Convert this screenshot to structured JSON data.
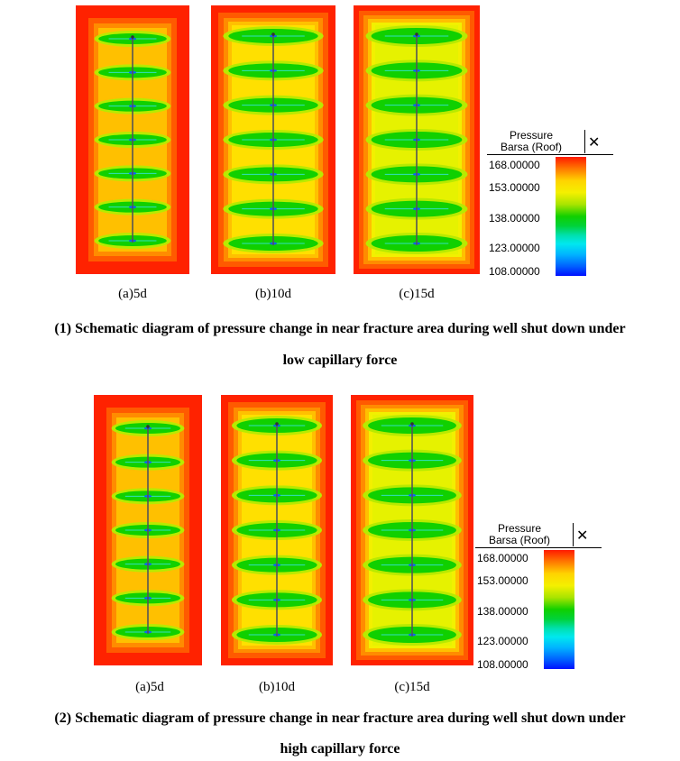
{
  "figure1": {
    "panels": [
      "(a)5d",
      "(b)10d",
      "(c)15d"
    ],
    "caption_line1": "(1) Schematic diagram of pressure change in near fracture area during well shut down under",
    "caption_line2": "low capillary force"
  },
  "figure2": {
    "panels": [
      "(a)5d",
      "(b)10d",
      "(c)15d"
    ],
    "caption_line1": "(2) Schematic diagram of pressure change in near fracture area during well shut down under",
    "caption_line2": "high capillary force"
  },
  "legend": {
    "title_line1": "Pressure",
    "title_line2": "Barsa (Roof)",
    "close_label": "✕",
    "ticks": [
      "168.00000",
      "153.00000",
      "138.00000",
      "123.00000",
      "108.00000"
    ],
    "colors": {
      "high": "#ff1a00",
      "mid": "#10d000",
      "low": "#0010ff"
    }
  }
}
